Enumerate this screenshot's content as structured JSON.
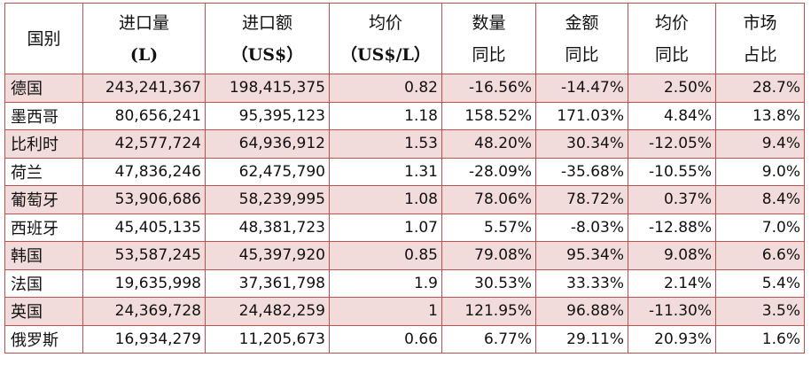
{
  "table": {
    "headers": [
      {
        "line1": "国别",
        "line2": ""
      },
      {
        "line1": "进口量",
        "line2": "(L)"
      },
      {
        "line1": "进口额",
        "line2": "（US$）"
      },
      {
        "line1": "均价",
        "line2": "（US$/L）"
      },
      {
        "line1": "数量",
        "line2": "同比"
      },
      {
        "line1": "金额",
        "line2": "同比"
      },
      {
        "line1": "均价",
        "line2": "同比"
      },
      {
        "line1": "市场",
        "line2": "占比"
      }
    ],
    "rows": [
      [
        "德国",
        "243,241,367",
        "198,415,375",
        "0.82",
        "-16.56%",
        "-14.47%",
        "2.50%",
        "28.7%"
      ],
      [
        "墨西哥",
        "80,656,241",
        "95,395,123",
        "1.18",
        "158.52%",
        "171.03%",
        "4.84%",
        "13.8%"
      ],
      [
        "比利时",
        "42,577,724",
        "64,936,912",
        "1.53",
        "48.20%",
        "30.34%",
        "-12.05%",
        "9.4%"
      ],
      [
        "荷兰",
        "47,836,246",
        "62,475,790",
        "1.31",
        "-28.09%",
        "-35.68%",
        "-10.55%",
        "9.0%"
      ],
      [
        "葡萄牙",
        "53,906,686",
        "58,239,995",
        "1.08",
        "78.06%",
        "78.72%",
        "0.37%",
        "8.4%"
      ],
      [
        "西班牙",
        "45,405,135",
        "48,381,723",
        "1.07",
        "5.57%",
        "-8.03%",
        "-12.88%",
        "7.0%"
      ],
      [
        "韩国",
        "53,587,245",
        "45,397,920",
        "0.85",
        "79.08%",
        "95.34%",
        "9.08%",
        "6.6%"
      ],
      [
        "法国",
        "19,635,998",
        "37,361,798",
        "1.9",
        "30.53%",
        "33.33%",
        "2.14%",
        "5.4%"
      ],
      [
        "英国",
        "24,369,728",
        "24,482,259",
        "1",
        "121.95%",
        "96.88%",
        "-11.30%",
        "3.5%"
      ],
      [
        "俄罗斯",
        "16,934,279",
        "11,205,673",
        "0.66",
        "6.77%",
        "29.11%",
        "20.93%",
        "1.6%"
      ]
    ]
  },
  "colors": {
    "border": "#c0504d",
    "shaded_row": "#f2dcdb",
    "background": "#ffffff",
    "text": "#111111"
  }
}
